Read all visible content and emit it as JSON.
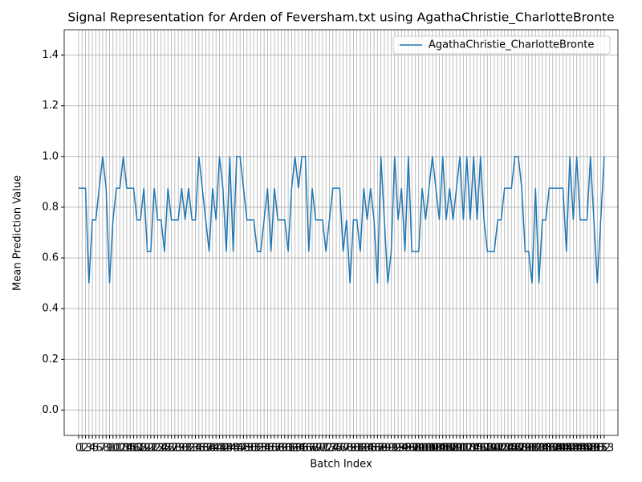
{
  "chart_data": {
    "type": "line",
    "title": "Signal Representation for Arden of Feversham.txt using AgathaChristie_CharlotteBronte",
    "xlabel": "Batch Index",
    "ylabel": "Mean Prediction Value",
    "x": [
      0,
      1,
      2,
      3,
      4,
      5,
      6,
      7,
      8,
      9,
      10,
      11,
      12,
      13,
      14,
      15,
      16,
      17,
      18,
      19,
      20,
      21,
      22,
      23,
      24,
      25,
      26,
      27,
      28,
      29,
      30,
      31,
      32,
      33,
      34,
      35,
      36,
      37,
      38,
      39,
      40,
      41,
      42,
      43,
      44,
      45,
      46,
      47,
      48,
      49,
      50,
      51,
      52,
      53,
      54,
      55,
      56,
      57,
      58,
      59,
      60,
      61,
      62,
      63,
      64,
      65,
      66,
      67,
      68,
      69,
      70,
      71,
      72,
      73,
      74,
      75,
      76,
      77,
      78,
      79,
      80,
      81,
      82,
      83,
      84,
      85,
      86,
      87,
      88,
      89,
      90,
      91,
      92,
      93,
      94,
      95,
      96,
      97,
      98,
      99,
      100,
      101,
      102,
      103,
      104,
      105,
      106,
      107,
      108,
      109,
      110,
      111,
      112,
      113,
      114,
      115,
      116,
      117,
      118,
      119,
      120,
      121,
      122,
      123,
      124,
      125,
      126,
      127,
      128,
      129,
      130,
      131,
      132,
      133,
      134,
      135,
      136,
      137,
      138,
      139,
      140,
      141,
      142,
      143,
      144,
      145,
      146,
      147,
      148,
      149,
      150,
      151,
      152,
      153
    ],
    "series": [
      {
        "name": "AgathaChristie_CharlotteBronte",
        "color": "#1f77b4",
        "values": [
          0.875,
          0.875,
          0.875,
          0.5,
          0.75,
          0.75,
          0.875,
          1.0,
          0.875,
          0.5,
          0.75,
          0.875,
          0.875,
          1.0,
          0.875,
          0.875,
          0.875,
          0.75,
          0.75,
          0.875,
          0.625,
          0.625,
          0.875,
          0.75,
          0.75,
          0.625,
          0.875,
          0.75,
          0.75,
          0.75,
          0.875,
          0.75,
          0.875,
          0.75,
          0.75,
          1.0,
          0.875,
          0.75,
          0.625,
          0.875,
          0.75,
          1.0,
          0.875,
          0.625,
          1.0,
          0.625,
          1.0,
          1.0,
          0.875,
          0.75,
          0.75,
          0.75,
          0.625,
          0.625,
          0.75,
          0.875,
          0.625,
          0.875,
          0.75,
          0.75,
          0.75,
          0.625,
          0.875,
          1.0,
          0.875,
          1.0,
          1.0,
          0.625,
          0.875,
          0.75,
          0.75,
          0.75,
          0.625,
          0.75,
          0.875,
          0.875,
          0.875,
          0.625,
          0.75,
          0.5,
          0.75,
          0.75,
          0.625,
          0.875,
          0.75,
          0.875,
          0.75,
          0.5,
          1.0,
          0.75,
          0.5,
          0.625,
          1.0,
          0.75,
          0.875,
          0.625,
          1.0,
          0.625,
          0.625,
          0.625,
          0.875,
          0.75,
          0.875,
          1.0,
          0.875,
          0.75,
          1.0,
          0.75,
          0.875,
          0.75,
          0.875,
          1.0,
          0.75,
          1.0,
          0.75,
          1.0,
          0.75,
          1.0,
          0.75,
          0.625,
          0.625,
          0.625,
          0.75,
          0.75,
          0.875,
          0.875,
          0.875,
          1.0,
          1.0,
          0.875,
          0.625,
          0.625,
          0.5,
          0.875,
          0.5,
          0.75,
          0.75,
          0.875,
          0.875,
          0.875,
          0.875,
          0.875,
          0.625,
          1.0,
          0.75,
          1.0,
          0.75,
          0.75,
          0.75,
          1.0,
          0.75,
          0.5,
          0.75,
          1.0
        ]
      }
    ],
    "xlim": [
      -4.2,
      157
    ],
    "xticks": [
      0,
      1,
      2,
      3,
      4,
      5,
      6,
      7,
      8,
      9,
      10,
      11,
      12,
      13,
      14,
      15,
      16,
      17,
      18,
      19,
      20,
      21,
      22,
      23,
      24,
      25,
      26,
      27,
      28,
      29,
      30,
      31,
      32,
      33,
      34,
      35,
      36,
      37,
      38,
      39,
      40,
      41,
      42,
      43,
      44,
      45,
      46,
      47,
      48,
      49,
      50,
      51,
      52,
      53,
      54,
      55,
      56,
      57,
      58,
      59,
      60,
      61,
      62,
      63,
      64,
      65,
      66,
      67,
      68,
      69,
      70,
      71,
      72,
      73,
      74,
      75,
      76,
      77,
      78,
      79,
      80,
      81,
      82,
      83,
      84,
      85,
      86,
      87,
      88,
      89,
      90,
      91,
      92,
      93,
      94,
      95,
      96,
      97,
      98,
      99,
      100,
      101,
      102,
      103,
      104,
      105,
      106,
      107,
      108,
      109,
      110,
      111,
      112,
      113,
      114,
      115,
      116,
      117,
      118,
      119,
      120,
      121,
      122,
      123,
      124,
      125,
      126,
      127,
      128,
      129,
      130,
      131,
      132,
      133,
      134,
      135,
      136,
      137,
      138,
      139,
      140,
      141,
      142,
      143,
      144,
      145,
      146,
      147,
      148,
      149,
      150,
      151,
      152,
      153
    ],
    "ylim": [
      -0.1,
      1.5
    ],
    "yticks": [
      {
        "value": 0,
        "label": "0.0"
      },
      0.2,
      0.4,
      0.6,
      0.8,
      {
        "value": 1,
        "label": "1.0"
      },
      1.2,
      1.4
    ],
    "grid": true,
    "legend": "upper right"
  }
}
